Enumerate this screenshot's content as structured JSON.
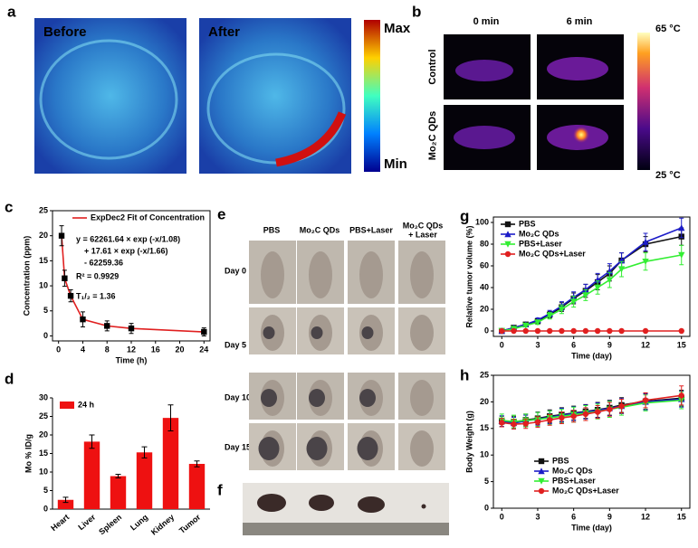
{
  "panels": {
    "a": {
      "letter": "a",
      "before": "Before",
      "after": "After",
      "max": "Max",
      "min": "Min"
    },
    "b": {
      "letter": "b",
      "col1": "0 min",
      "col2": "6 min",
      "row1": "Control",
      "row2": "Mo₂C QDs",
      "top": "65 °C",
      "bottom": "25 °C"
    },
    "c": {
      "letter": "c"
    },
    "d": {
      "letter": "d"
    },
    "e": {
      "letter": "e",
      "columns": [
        "PBS",
        "Mo₂C QDs",
        "PBS+Laser",
        "Mo₂C QDs",
        "+ Laser"
      ],
      "rows": [
        "Day 0",
        "Day 5",
        "Day 10",
        "Day 15"
      ]
    },
    "f": {
      "letter": "f"
    },
    "g": {
      "letter": "g"
    },
    "h": {
      "letter": "h"
    }
  },
  "chart_data": [
    {
      "type": "line",
      "ylabel": "Concentration (ppm)",
      "xlabel": "Time (h)",
      "x": [
        0.5,
        1,
        2,
        4,
        8,
        12,
        24
      ],
      "series": [
        {
          "name": "ExpDec2 Fit of Concentration",
          "color": "#e02020",
          "marker_color": "#000000",
          "marker": "square",
          "values": [
            20,
            11.5,
            8,
            3.3,
            2,
            1.5,
            0.8
          ],
          "errors": [
            2,
            1.6,
            1.2,
            1.5,
            1,
            1,
            0.8
          ]
        }
      ],
      "annotations": [
        "y = 62261.64 × exp (-x/1.08)",
        "+ 17.61 × exp (-x/1.66)",
        "- 62259.36",
        "R² = 0.9929",
        "T₁/₂ = 1.36"
      ],
      "xlim": [
        -1,
        25
      ],
      "xticks": [
        0,
        4,
        8,
        12,
        16,
        20,
        24
      ],
      "ylim": [
        -1,
        25
      ],
      "yticks": [
        0,
        5,
        10,
        15,
        20,
        25
      ],
      "legend": "upper right",
      "frame": true
    },
    {
      "type": "bar",
      "ylabel": "Mo % ID/g",
      "categories": [
        "Heart",
        "Liver",
        "Spleen",
        "Lung",
        "Kidney",
        "Tumor"
      ],
      "series": [
        {
          "name": "24 h",
          "color": "#ee1111",
          "values": [
            2.5,
            18.2,
            8.9,
            15.3,
            24.6,
            12.2
          ],
          "errors": [
            0.7,
            1.8,
            0.5,
            1.5,
            3.5,
            0.8
          ]
        }
      ],
      "ylim": [
        0,
        30
      ],
      "yticks": [
        0,
        5,
        10,
        15,
        20,
        25,
        30
      ],
      "legend": "upper left",
      "frame": false
    },
    {
      "type": "line",
      "ylabel": "Relative tumor volume (%)",
      "xlabel": "Time (day)",
      "x": [
        0,
        1,
        2,
        3,
        4,
        5,
        6,
        7,
        8,
        9,
        10,
        12,
        15
      ],
      "series": [
        {
          "name": "PBS",
          "color": "#111111",
          "marker": "square",
          "values": [
            0,
            3,
            6,
            9,
            15,
            22,
            30,
            37,
            45,
            53,
            65,
            80,
            87
          ],
          "errors": [
            0,
            1,
            1,
            2,
            3,
            4,
            5,
            6,
            7,
            7,
            7,
            7,
            8
          ]
        },
        {
          "name": "Mo₂C QDs",
          "color": "#1c1cc8",
          "marker": "triangle",
          "values": [
            0,
            3,
            6,
            10,
            16,
            23,
            31,
            38,
            47,
            55,
            65,
            82,
            95
          ],
          "errors": [
            0,
            1,
            1,
            2,
            3,
            4,
            5,
            5,
            6,
            7,
            7,
            8,
            9
          ]
        },
        {
          "name": "PBS+Laser",
          "color": "#33ee33",
          "marker": "triangle-down",
          "values": [
            0,
            2,
            5,
            8,
            14,
            20,
            27,
            33,
            40,
            47,
            57,
            64,
            70
          ],
          "errors": [
            0,
            1,
            1,
            2,
            3,
            4,
            5,
            5,
            6,
            7,
            7,
            8,
            9
          ]
        },
        {
          "name": "Mo₂C QDs+Laser",
          "color": "#e02020",
          "marker": "circle",
          "values": [
            0,
            0,
            0,
            0,
            0,
            0,
            0,
            0,
            0,
            0,
            0,
            0,
            0
          ],
          "errors": [
            0,
            0,
            0,
            0,
            0,
            0,
            0,
            0,
            0,
            0,
            0,
            0,
            0
          ]
        }
      ],
      "xlim": [
        -0.7,
        15.7
      ],
      "xticks": [
        0,
        3,
        6,
        9,
        12,
        15
      ],
      "ylim": [
        -5,
        105
      ],
      "yticks": [
        0,
        20,
        40,
        60,
        80,
        100
      ],
      "legend": "upper left",
      "frame": true
    },
    {
      "type": "line",
      "ylabel": "Body Weight (g)",
      "xlabel": "Time (day)",
      "x": [
        0,
        1,
        2,
        3,
        4,
        5,
        6,
        7,
        8,
        9,
        10,
        12,
        15
      ],
      "series": [
        {
          "name": "PBS",
          "color": "#111111",
          "marker": "square",
          "values": [
            16.3,
            16.2,
            16.6,
            16.9,
            17.3,
            17.6,
            17.9,
            18.2,
            18.5,
            18.9,
            19.4,
            20.1,
            20.7
          ],
          "errors": [
            1,
            1.1,
            1.1,
            1.2,
            1.2,
            1.3,
            1.3,
            1.3,
            1.4,
            1.4,
            1.4,
            1.5,
            1.5
          ]
        },
        {
          "name": "Mo₂C QDs",
          "color": "#1c1cc8",
          "marker": "triangle",
          "values": [
            16.4,
            16.0,
            16.4,
            16.8,
            17.1,
            17.5,
            17.8,
            18.1,
            18.4,
            18.8,
            19.2,
            20.0,
            20.5
          ],
          "errors": [
            1,
            1.1,
            1.1,
            1.2,
            1.2,
            1.3,
            1.3,
            1.3,
            1.4,
            1.4,
            1.4,
            1.5,
            1.5
          ]
        },
        {
          "name": "PBS+Laser",
          "color": "#33ee33",
          "marker": "triangle-down",
          "values": [
            16.5,
            16.3,
            16.5,
            16.7,
            17.0,
            17.3,
            17.6,
            17.9,
            18.2,
            18.6,
            19.0,
            19.8,
            20.3
          ],
          "errors": [
            1.2,
            1.2,
            1.2,
            1.3,
            1.3,
            1.3,
            1.4,
            1.4,
            1.4,
            1.5,
            1.5,
            1.5,
            1.6
          ]
        },
        {
          "name": "Mo₂C QDs+Laser",
          "color": "#e02020",
          "marker": "circle",
          "values": [
            16.1,
            15.8,
            15.9,
            16.2,
            16.6,
            17.0,
            17.3,
            17.7,
            18.1,
            18.6,
            19.2,
            20.3,
            21.2
          ],
          "errors": [
            0.8,
            0.9,
            0.9,
            1,
            1,
            1.1,
            1.1,
            1.2,
            1.2,
            1.3,
            1.3,
            1.4,
            1.8
          ]
        }
      ],
      "xlim": [
        -0.7,
        15.7
      ],
      "xticks": [
        0,
        3,
        6,
        9,
        12,
        15
      ],
      "ylim": [
        0,
        25
      ],
      "yticks": [
        0,
        5,
        10,
        15,
        20,
        25
      ],
      "legend": "lower center",
      "frame": true
    }
  ]
}
